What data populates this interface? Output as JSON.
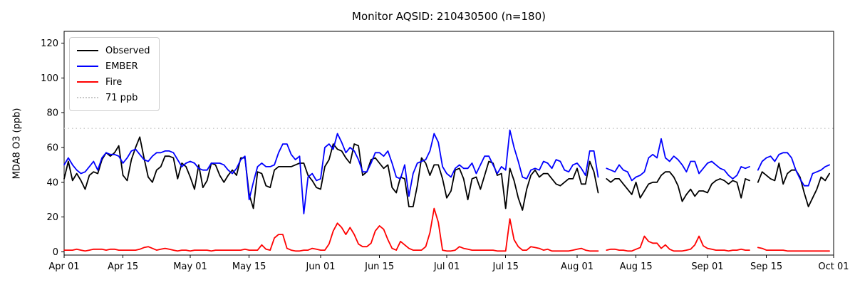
{
  "figure": {
    "title": "Monitor AQSID: 210430500 (n=180)"
  },
  "axes": {
    "y_label": "MDA8 O3 (ppb)",
    "y_ticks": [
      0,
      20,
      40,
      60,
      80,
      100,
      120
    ],
    "x_ticks": [
      {
        "label": "Apr 01",
        "day": 0
      },
      {
        "label": "Apr 15",
        "day": 14
      },
      {
        "label": "May 01",
        "day": 30
      },
      {
        "label": "May 15",
        "day": 44
      },
      {
        "label": "Jun 01",
        "day": 61
      },
      {
        "label": "Jun 15",
        "day": 75
      },
      {
        "label": "Jul 01",
        "day": 91
      },
      {
        "label": "Jul 15",
        "day": 105
      },
      {
        "label": "Aug 01",
        "day": 122
      },
      {
        "label": "Aug 15",
        "day": 136
      },
      {
        "label": "Sep 01",
        "day": 153
      },
      {
        "label": "Sep 15",
        "day": 167
      },
      {
        "label": "Oct 01",
        "day": 183
      }
    ]
  },
  "legend": {
    "items": [
      {
        "label": "Observed",
        "color": "#000000",
        "style": "solid"
      },
      {
        "label": "EMBER",
        "color": "#0000ff",
        "style": "solid"
      },
      {
        "label": "Fire",
        "color": "#ff0000",
        "style": "solid"
      },
      {
        "label": "71 ppb",
        "color": "#c8c8c8",
        "style": "dotted"
      }
    ]
  },
  "chart_data": {
    "type": "line",
    "title": "Monitor AQSID: 210430500 (n=180)",
    "xlabel": "",
    "ylabel": "MDA8 O3 (ppb)",
    "x_start_date": "Apr 01",
    "x_end_date": "Oct 01",
    "x_unit": "day",
    "ylim": [
      0,
      120
    ],
    "threshold": {
      "value": 71,
      "label": "71 ppb",
      "color": "#c8c8c8",
      "linestyle": "dotted"
    },
    "grid": false,
    "legend_position": "upper left",
    "note_gaps": "null = missing day (gap in all series)",
    "series": [
      {
        "name": "Observed",
        "color": "#000000",
        "values": [
          42,
          52,
          41,
          45,
          41,
          36,
          44,
          46,
          45,
          53,
          57,
          55,
          57,
          61,
          44,
          41,
          53,
          60,
          66,
          54,
          43,
          40,
          47,
          49,
          55,
          55,
          54,
          42,
          51,
          49,
          43,
          36,
          50,
          37,
          41,
          51,
          50,
          44,
          40,
          44,
          47,
          44,
          54,
          54,
          33,
          25,
          46,
          45,
          38,
          37,
          47,
          49,
          49,
          49,
          49,
          50,
          51,
          51,
          44,
          41,
          37,
          36,
          49,
          53,
          62,
          59,
          58,
          54,
          51,
          62,
          61,
          44,
          46,
          53,
          54,
          51,
          48,
          50,
          37,
          34,
          43,
          42,
          26,
          26,
          38,
          54,
          51,
          44,
          50,
          50,
          42,
          31,
          35,
          47,
          48,
          42,
          30,
          42,
          43,
          36,
          44,
          52,
          51,
          44,
          45,
          25,
          48,
          41,
          31,
          24,
          36,
          44,
          47,
          43,
          45,
          45,
          42,
          39,
          38,
          40,
          42,
          42,
          48,
          39,
          39,
          52,
          46,
          34,
          null,
          42,
          40,
          42,
          42,
          39,
          36,
          33,
          40,
          31,
          35,
          39,
          40,
          40,
          44,
          46,
          46,
          43,
          38,
          29,
          33,
          36,
          32,
          35,
          35,
          34,
          39,
          41,
          42,
          41,
          39,
          41,
          40,
          31,
          42,
          41,
          null,
          40,
          46,
          44,
          42,
          41,
          51,
          39,
          45,
          47,
          47,
          43,
          34,
          26,
          31,
          36,
          43,
          41,
          45
        ]
      },
      {
        "name": "EMBER",
        "color": "#0000ff",
        "values": [
          50,
          54,
          50,
          47,
          45,
          46,
          49,
          52,
          47,
          54,
          57,
          56,
          56,
          55,
          51,
          54,
          58,
          59,
          56,
          53,
          52,
          55,
          57,
          57,
          58,
          58,
          57,
          53,
          49,
          51,
          52,
          51,
          48,
          47,
          47,
          51,
          51,
          51,
          50,
          47,
          45,
          48,
          53,
          55,
          30,
          40,
          49,
          51,
          49,
          49,
          50,
          57,
          62,
          62,
          56,
          53,
          55,
          22,
          43,
          45,
          41,
          42,
          60,
          62,
          59,
          68,
          63,
          57,
          60,
          58,
          53,
          46,
          46,
          51,
          57,
          57,
          55,
          58,
          51,
          43,
          42,
          50,
          32,
          45,
          51,
          52,
          53,
          58,
          68,
          63,
          49,
          45,
          43,
          48,
          50,
          48,
          48,
          51,
          45,
          50,
          55,
          55,
          50,
          45,
          49,
          47,
          70,
          60,
          52,
          43,
          42,
          47,
          48,
          47,
          52,
          51,
          48,
          53,
          52,
          47,
          46,
          50,
          51,
          48,
          44,
          58,
          58,
          43,
          null,
          48,
          47,
          46,
          50,
          47,
          46,
          41,
          43,
          44,
          46,
          54,
          56,
          54,
          65,
          54,
          52,
          55,
          53,
          50,
          46,
          52,
          52,
          45,
          48,
          51,
          52,
          50,
          48,
          47,
          44,
          42,
          44,
          49,
          48,
          49,
          null,
          47,
          52,
          54,
          55,
          52,
          56,
          57,
          57,
          54,
          47,
          42,
          38,
          38,
          45,
          46,
          47,
          49,
          50
        ]
      },
      {
        "name": "Fire",
        "color": "#ff0000",
        "values": [
          1,
          1,
          1,
          1.5,
          1,
          0.5,
          1,
          1.5,
          1.5,
          1.5,
          1,
          1.5,
          1.5,
          1,
          1,
          1,
          1,
          1,
          1.5,
          2.5,
          3,
          2,
          1,
          1.5,
          2,
          1.5,
          1,
          0.5,
          1,
          1,
          0.5,
          1,
          1,
          1,
          1,
          0.5,
          1,
          1,
          1,
          1,
          1,
          1,
          1,
          1.5,
          1,
          1,
          1,
          4,
          1.5,
          1,
          8,
          10,
          10,
          2,
          1,
          0.5,
          0.5,
          1,
          1,
          2,
          1.5,
          1,
          1,
          4.5,
          12,
          16.5,
          14,
          10,
          14,
          10,
          4.5,
          3,
          3,
          5,
          12,
          15,
          13,
          7,
          2,
          1,
          6,
          4,
          2,
          1,
          1,
          1,
          3,
          11,
          25,
          17,
          1,
          0.5,
          0.5,
          1,
          3,
          2,
          1.5,
          1,
          1,
          1,
          1,
          1,
          1,
          0.5,
          0.5,
          0.5,
          19,
          7,
          3,
          1,
          1,
          3,
          2.5,
          2,
          1,
          1.5,
          0.5,
          0.5,
          0.5,
          0.5,
          0.5,
          1,
          1.5,
          2,
          1,
          0.5,
          0.5,
          0.5,
          null,
          1,
          1.5,
          1.5,
          1,
          1,
          0.5,
          0.5,
          1.5,
          2.5,
          9,
          6,
          5,
          5,
          2,
          4,
          1.5,
          0.5,
          0.5,
          0.5,
          1,
          1.5,
          4,
          9,
          3.5,
          2,
          1.5,
          1,
          1,
          1,
          0.5,
          1,
          1,
          1.5,
          1,
          1,
          null,
          2.5,
          2,
          1,
          1,
          1,
          1,
          1,
          0.5,
          0.5,
          0.5,
          0.5,
          0.5,
          0.5,
          0.5,
          0.5,
          0.5,
          0.5,
          0.5
        ]
      }
    ]
  }
}
